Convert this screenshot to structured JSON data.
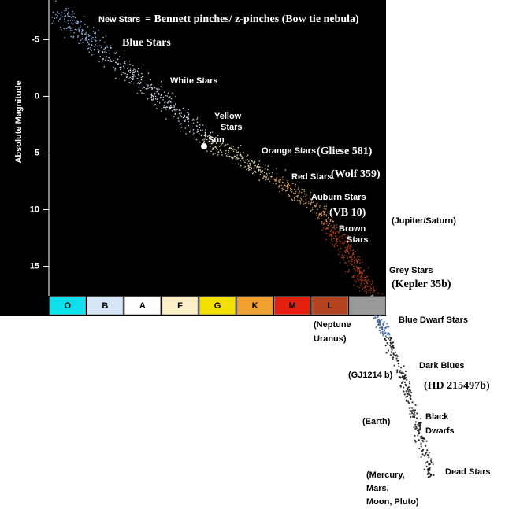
{
  "chart_data": {
    "type": "scatter",
    "ylabel": "Absolute Magnitude",
    "ylim": [
      -8.5,
      17.6
    ],
    "yticks": [
      -5,
      0,
      5,
      10,
      15
    ],
    "categories": [
      "O",
      "B",
      "A",
      "F",
      "G",
      "K",
      "M",
      "L",
      null
    ],
    "category_colors": [
      "#10e0ee",
      "#d6e6f6",
      "#ffffff",
      "#fbf0c8",
      "#f4e000",
      "#f0a030",
      "#e62010",
      "#b44420",
      "#9a9a9a"
    ],
    "point_label": "Sun",
    "annotations": [
      "New Stars",
      "= Bennett pinches/ z-pinches (Bow tie nebula)",
      "Blue Stars",
      "White Stars",
      "Yellow",
      "Stars",
      "Orange Stars",
      "(Gliese 581)",
      "Red Stars",
      "(Wolf 359)",
      "Auburn Stars",
      "(VB 10)",
      "Brown",
      "Stars",
      "(Jupiter/Saturn)",
      "Grey Stars",
      "(Kepler 35b)",
      "(Neptune",
      "Uranus)",
      "Blue Dwarf Stars",
      "Dark Blues",
      "(GJ1214 b)",
      "(HD 215497b)",
      "Black",
      "Dwarfs",
      "(Earth)",
      "Dead Stars",
      "(Mercury,",
      "Mars,",
      "Moon, Pluto)"
    ]
  }
}
